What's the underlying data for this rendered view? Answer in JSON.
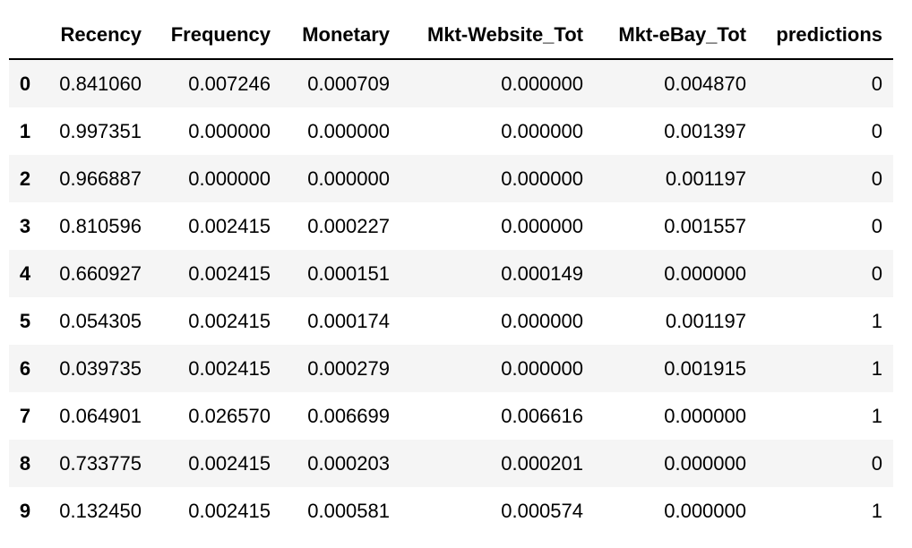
{
  "table": {
    "columns": [
      "",
      "Recency",
      "Frequency",
      "Monetary",
      "Mkt-Website_Tot",
      "Mkt-eBay_Tot",
      "predictions"
    ],
    "rows": [
      {
        "index": "0",
        "values": [
          "0.841060",
          "0.007246",
          "0.000709",
          "0.000000",
          "0.004870",
          "0"
        ]
      },
      {
        "index": "1",
        "values": [
          "0.997351",
          "0.000000",
          "0.000000",
          "0.000000",
          "0.001397",
          "0"
        ]
      },
      {
        "index": "2",
        "values": [
          "0.966887",
          "0.000000",
          "0.000000",
          "0.000000",
          "0.001197",
          "0"
        ]
      },
      {
        "index": "3",
        "values": [
          "0.810596",
          "0.002415",
          "0.000227",
          "0.000000",
          "0.001557",
          "0"
        ]
      },
      {
        "index": "4",
        "values": [
          "0.660927",
          "0.002415",
          "0.000151",
          "0.000149",
          "0.000000",
          "0"
        ]
      },
      {
        "index": "5",
        "values": [
          "0.054305",
          "0.002415",
          "0.000174",
          "0.000000",
          "0.001197",
          "1"
        ]
      },
      {
        "index": "6",
        "values": [
          "0.039735",
          "0.002415",
          "0.000279",
          "0.000000",
          "0.001915",
          "1"
        ]
      },
      {
        "index": "7",
        "values": [
          "0.064901",
          "0.026570",
          "0.006699",
          "0.006616",
          "0.000000",
          "1"
        ]
      },
      {
        "index": "8",
        "values": [
          "0.733775",
          "0.002415",
          "0.000203",
          "0.000201",
          "0.000000",
          "0"
        ]
      },
      {
        "index": "9",
        "values": [
          "0.132450",
          "0.002415",
          "0.000581",
          "0.000574",
          "0.000000",
          "1"
        ]
      }
    ]
  },
  "colors": {
    "stripe": "#f5f5f5",
    "background": "#ffffff",
    "text": "#000000",
    "header_rule": "#000000"
  }
}
